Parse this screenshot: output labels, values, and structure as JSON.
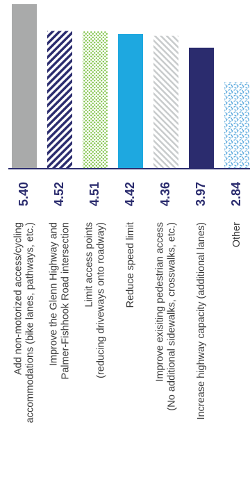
{
  "chart_data": {
    "type": "bar",
    "orientation": "vertical",
    "categories": [
      [
        "Add non-motorized access/cycling",
        "accommodations (bike lanes, pathways, etc.)"
      ],
      [
        "Improve the Glenn Highway and",
        "Palmer-Fishhook Road intersection"
      ],
      [
        "Limit access points",
        "(reducing driveways onto roadway)"
      ],
      [
        "Reduce speed limit"
      ],
      [
        "Improve exisiting pedestrian access",
        "(No additional sidewalks, crosswalks, etc.)"
      ],
      [
        "Increase highway capacity (additional lanes)"
      ],
      [
        "Other"
      ]
    ],
    "values": [
      5.4,
      4.52,
      4.51,
      4.42,
      4.36,
      3.97,
      2.84
    ],
    "value_labels": [
      "5.40",
      "4.52",
      "4.51",
      "4.42",
      "4.36",
      "3.97",
      "2.84"
    ],
    "ylim": [
      0,
      5.4
    ],
    "colors": {
      "axis": "#2b2c6e",
      "value_text": "#2b2c6e",
      "label_text": "#3a3a3a",
      "bar_gray": "#a9aaaa",
      "bar_navy": "#2b2c6e",
      "bar_green": "#7cc142",
      "bar_blue": "#1ea8e0",
      "bar_lightgray": "#c8cbcc",
      "bar_lightblue": "#5aa9dd"
    },
    "bar_styles": [
      "solid-gray",
      "navy-stripes",
      "green-dots",
      "solid-blue",
      "gray-hatch",
      "solid-navy",
      "blue-speckle"
    ],
    "grid": false,
    "legend": "none"
  }
}
